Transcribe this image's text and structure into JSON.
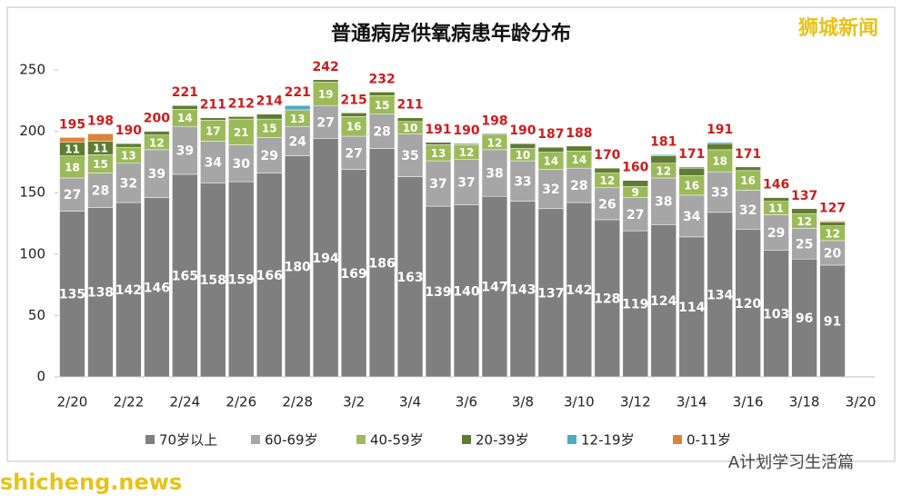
{
  "chart_data": {
    "type": "stacked_bar",
    "title": "普通病房供氧病患年龄分布",
    "categories": [
      "2/20",
      null,
      "2/22",
      null,
      "2/24",
      null,
      "2/26",
      null,
      "2/28",
      null,
      "3/2",
      null,
      "3/4",
      null,
      "3/6",
      null,
      "3/8",
      null,
      "3/10",
      null,
      "3/12",
      null,
      "3/14",
      null,
      "3/16",
      null,
      "3/18",
      null,
      "3/20"
    ],
    "series": [
      {
        "name": "70岁以上",
        "color": "#7f7f7f",
        "values": [
          135,
          138,
          142,
          146,
          165,
          158,
          159,
          166,
          180,
          194,
          169,
          186,
          163,
          139,
          140,
          147,
          143,
          137,
          142,
          128,
          119,
          124,
          114,
          134,
          120,
          103,
          96,
          91,
          null
        ]
      },
      {
        "name": "60-69岁",
        "color": "#a6a6a6",
        "values": [
          27,
          28,
          32,
          39,
          39,
          34,
          30,
          29,
          24,
          27,
          27,
          28,
          35,
          37,
          37,
          38,
          33,
          32,
          28,
          26,
          27,
          38,
          34,
          33,
          32,
          29,
          25,
          20,
          null
        ]
      },
      {
        "name": "40-59岁",
        "color": "#9bbb59",
        "values": [
          18,
          15,
          13,
          12,
          14,
          17,
          21,
          15,
          13,
          19,
          16,
          15,
          10,
          13,
          12,
          12,
          10,
          14,
          14,
          12,
          9,
          12,
          16,
          18,
          16,
          11,
          12,
          12,
          null
        ]
      },
      {
        "name": "20-39岁",
        "color": "#5f7d32",
        "values": [
          11,
          11,
          3,
          3,
          3,
          2,
          2,
          4,
          1,
          2,
          3,
          3,
          3,
          2,
          1,
          1,
          4,
          4,
          4,
          4,
          5,
          6,
          6,
          5,
          3,
          3,
          4,
          3,
          null
        ]
      },
      {
        "name": "12-19岁",
        "color": "#4bacc6",
        "values": [
          0,
          0,
          0,
          0,
          0,
          0,
          0,
          0,
          3,
          0,
          0,
          0,
          0,
          0,
          0,
          0,
          0,
          0,
          0,
          0,
          0,
          1,
          1,
          1,
          0,
          0,
          0,
          0,
          null
        ]
      },
      {
        "name": "0-11岁",
        "color": "#d9843b",
        "values": [
          4,
          6,
          0,
          0,
          0,
          0,
          0,
          0,
          0,
          0,
          0,
          0,
          0,
          0,
          0,
          0,
          0,
          0,
          0,
          0,
          0,
          0,
          0,
          0,
          0,
          0,
          0,
          1,
          null
        ]
      }
    ],
    "totals": [
      195,
      198,
      190,
      200,
      221,
      211,
      212,
      214,
      221,
      242,
      215,
      232,
      211,
      191,
      190,
      198,
      190,
      187,
      188,
      170,
      160,
      181,
      171,
      191,
      171,
      146,
      137,
      127,
      null
    ],
    "ylim": [
      0,
      250
    ],
    "yticks": [
      0,
      50,
      100,
      150,
      200,
      250
    ],
    "grid": false,
    "annotations": [
      "狮城新闻",
      "A计划学习生活篇",
      "shicheng.news"
    ]
  }
}
